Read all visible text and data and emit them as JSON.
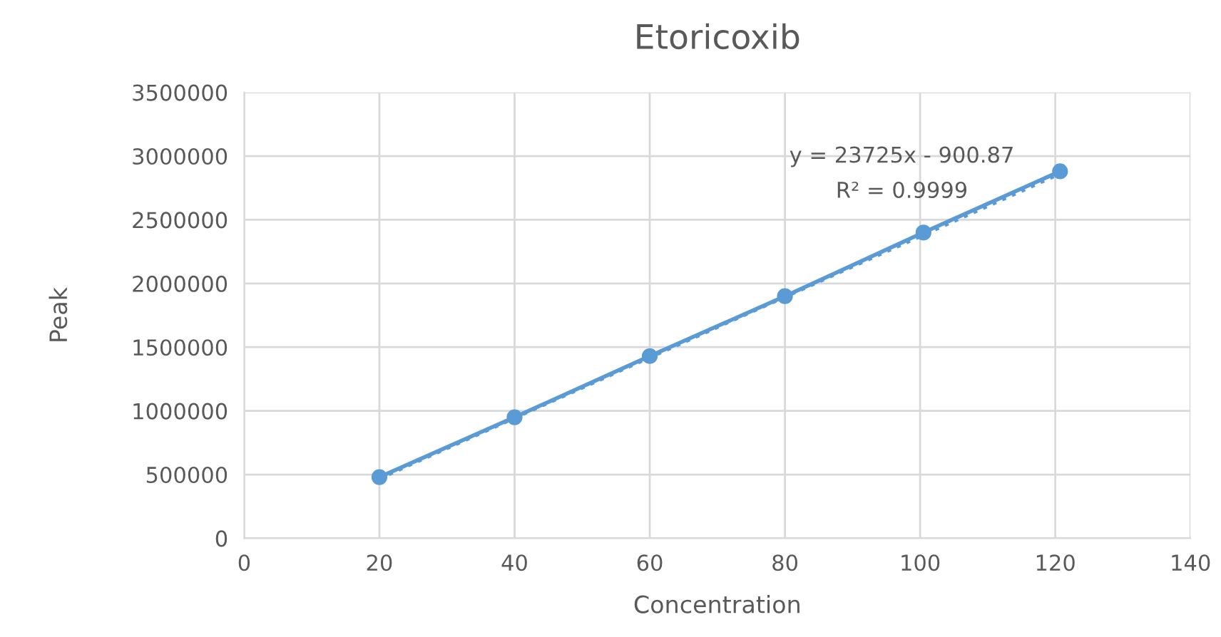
{
  "chart_data": {
    "type": "line",
    "title": "Etoricoxib",
    "xlabel": "Concentration",
    "ylabel": "Peak",
    "series": [
      {
        "color": "#5b9bd5",
        "marker": "circle",
        "line_style": "solid",
        "x": [
          20,
          40,
          60,
          80,
          100.5,
          120.7
        ],
        "values": [
          480000,
          950000,
          1430000,
          1900000,
          2400000,
          2880000
        ]
      },
      {
        "color": "#5b9bd5",
        "marker": "none",
        "line_style": "dotted",
        "x": [
          20,
          121
        ],
        "values": [
          470000,
          2870000
        ]
      }
    ],
    "annotations": [
      "y = 23725x - 900.87",
      "R² = 0.9999"
    ],
    "xlim": [
      0,
      140
    ],
    "xticks": [
      0,
      20,
      40,
      60,
      80,
      100,
      120,
      140
    ],
    "ylim": [
      0,
      3500000
    ],
    "yticks": [
      0,
      500000,
      1000000,
      1500000,
      2000000,
      2500000,
      3000000,
      3500000
    ],
    "grid": true,
    "legend": false
  }
}
